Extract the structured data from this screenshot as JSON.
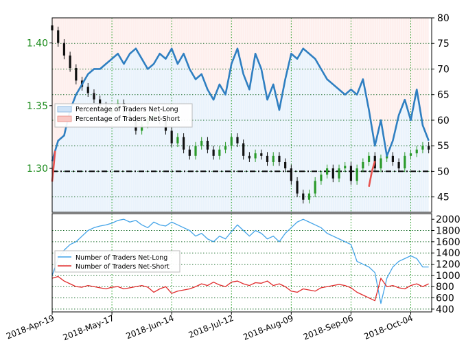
{
  "chart_data": [
    {
      "type": "line",
      "panel": "top",
      "y_left_ticks": [
        "1.30",
        "1.35",
        "1.40"
      ],
      "y_left_range": [
        1.265,
        1.42
      ],
      "y_right_ticks": [
        "45",
        "50",
        "55",
        "60",
        "65",
        "70",
        "75",
        "80"
      ],
      "y_right_range": [
        42,
        80
      ],
      "x_labels": [
        "2018-Apr-19",
        "2018-May-17",
        "2018-Jun-14",
        "2018-Jul-12",
        "2018-Aug-09",
        "2018-Sep-06",
        "2018-Oct-04"
      ],
      "x_range": [
        0,
        127
      ],
      "x_label_positions": [
        0,
        20,
        40,
        60,
        80,
        100,
        120
      ],
      "legend": [
        "Percentage of Traders Net-Long",
        "Percentage of Traders Net-Short"
      ],
      "legend_placement": "center-left",
      "reference_line_right": 50,
      "series": [
        {
          "name": "Percentage of Traders Net-Long",
          "axis": "right",
          "color": "#2f7fc1",
          "x": [
            0,
            2,
            4,
            6,
            8,
            10,
            12,
            14,
            16,
            18,
            20,
            22,
            24,
            26,
            28,
            30,
            32,
            34,
            36,
            38,
            40,
            42,
            44,
            46,
            48,
            50,
            52,
            54,
            56,
            58,
            60,
            62,
            64,
            66,
            68,
            70,
            72,
            74,
            76,
            78,
            80,
            82,
            84,
            86,
            88,
            90,
            92,
            94,
            96,
            98,
            100,
            102,
            104,
            106,
            108,
            110,
            112,
            114,
            116,
            118,
            120,
            122,
            124,
            126
          ],
          "values": [
            52,
            56,
            57,
            62,
            65,
            67,
            69,
            70,
            70,
            71,
            72,
            73,
            71,
            73,
            74,
            72,
            70,
            71,
            73,
            72,
            74,
            71,
            73,
            70,
            68,
            69,
            66,
            64,
            67,
            65,
            71,
            74,
            69,
            66,
            73,
            70,
            64,
            67,
            62,
            68,
            73,
            72,
            74,
            73,
            72,
            70,
            68,
            67,
            66,
            65,
            66,
            65,
            68,
            62,
            55,
            60,
            53,
            56,
            61,
            64,
            60,
            66,
            59,
            56
          ]
        },
        {
          "name": "Percentage of Traders Net-Short",
          "axis": "right",
          "color": "#e8534f",
          "x": [
            0,
            1,
            106,
            107,
            108
          ],
          "values": [
            48,
            54,
            47,
            50,
            52
          ]
        },
        {
          "name": "Price",
          "axis": "left",
          "type": "candlestick-close",
          "color": "#111111",
          "x": [
            0,
            2,
            4,
            6,
            8,
            10,
            12,
            14,
            16,
            18,
            20,
            22,
            24,
            26,
            28,
            30,
            32,
            34,
            36,
            38,
            40,
            42,
            44,
            46,
            48,
            50,
            52,
            54,
            56,
            58,
            60,
            62,
            64,
            66,
            68,
            70,
            72,
            74,
            76,
            78,
            80,
            82,
            84,
            86,
            88,
            90,
            92,
            94,
            96,
            98,
            100,
            102,
            104,
            106,
            108,
            110,
            112,
            114,
            116,
            118,
            120,
            122,
            124,
            126
          ],
          "values": [
            1.41,
            1.4,
            1.39,
            1.38,
            1.37,
            1.365,
            1.36,
            1.355,
            1.35,
            1.345,
            1.348,
            1.352,
            1.345,
            1.34,
            1.33,
            1.335,
            1.34,
            1.342,
            1.338,
            1.33,
            1.32,
            1.325,
            1.315,
            1.31,
            1.318,
            1.322,
            1.315,
            1.31,
            1.315,
            1.318,
            1.325,
            1.32,
            1.31,
            1.308,
            1.312,
            1.31,
            1.305,
            1.31,
            1.305,
            1.3,
            1.29,
            1.28,
            1.275,
            1.28,
            1.29,
            1.295,
            1.3,
            1.292,
            1.3,
            1.302,
            1.29,
            1.3,
            1.305,
            1.31,
            1.3,
            1.308,
            1.31,
            1.305,
            1.3,
            1.31,
            1.312,
            1.315,
            1.318,
            1.315
          ]
        }
      ]
    },
    {
      "type": "line",
      "panel": "bottom",
      "y_ticks": [
        "400",
        "600",
        "800",
        "1000",
        "1200",
        "1400",
        "1600",
        "1800",
        "2000"
      ],
      "y_range": [
        350,
        2100
      ],
      "legend": [
        "Number of Traders Net-Long",
        "Number of Traders Net-Short"
      ],
      "legend_placement": "center-left",
      "series": [
        {
          "name": "Number of Traders Net-Long",
          "color": "#42a3e8",
          "x": [
            0,
            2,
            4,
            6,
            8,
            10,
            12,
            14,
            16,
            18,
            20,
            22,
            24,
            26,
            28,
            30,
            32,
            34,
            36,
            38,
            40,
            42,
            44,
            46,
            48,
            50,
            52,
            54,
            56,
            58,
            60,
            62,
            64,
            66,
            68,
            70,
            72,
            74,
            76,
            78,
            80,
            82,
            84,
            86,
            88,
            90,
            92,
            94,
            96,
            98,
            100,
            102,
            104,
            106,
            108,
            110,
            112,
            114,
            116,
            118,
            120,
            122,
            124,
            126
          ],
          "values": [
            1000,
            1300,
            1450,
            1550,
            1600,
            1700,
            1800,
            1850,
            1880,
            1900,
            1930,
            1980,
            2000,
            1950,
            1980,
            1900,
            1850,
            1950,
            1900,
            1880,
            1950,
            1900,
            1850,
            1800,
            1700,
            1750,
            1650,
            1600,
            1700,
            1650,
            1780,
            1900,
            1800,
            1700,
            1800,
            1750,
            1650,
            1700,
            1600,
            1750,
            1850,
            1950,
            2000,
            1950,
            1900,
            1850,
            1750,
            1700,
            1650,
            1600,
            1550,
            1250,
            1200,
            1150,
            1050,
            500,
            950,
            1150,
            1250,
            1300,
            1350,
            1300,
            1150,
            1150
          ]
        },
        {
          "name": "Number of Traders Net-Short",
          "color": "#e02a2a",
          "x": [
            0,
            2,
            4,
            6,
            8,
            10,
            12,
            14,
            16,
            18,
            20,
            22,
            24,
            26,
            28,
            30,
            32,
            34,
            36,
            38,
            40,
            42,
            44,
            46,
            48,
            50,
            52,
            54,
            56,
            58,
            60,
            62,
            64,
            66,
            68,
            70,
            72,
            74,
            76,
            78,
            80,
            82,
            84,
            86,
            88,
            90,
            92,
            94,
            96,
            98,
            100,
            102,
            104,
            106,
            108,
            110,
            112,
            114,
            116,
            118,
            120,
            122,
            124,
            126
          ],
          "values": [
            950,
            980,
            900,
            850,
            800,
            790,
            820,
            800,
            780,
            760,
            790,
            800,
            760,
            780,
            800,
            820,
            790,
            700,
            760,
            800,
            680,
            720,
            740,
            760,
            800,
            850,
            820,
            880,
            830,
            800,
            880,
            900,
            850,
            820,
            870,
            860,
            900,
            820,
            850,
            800,
            720,
            700,
            760,
            740,
            720,
            780,
            800,
            820,
            840,
            820,
            780,
            700,
            650,
            600,
            550,
            950,
            800,
            820,
            780,
            760,
            820,
            850,
            800,
            850
          ]
        }
      ]
    }
  ]
}
